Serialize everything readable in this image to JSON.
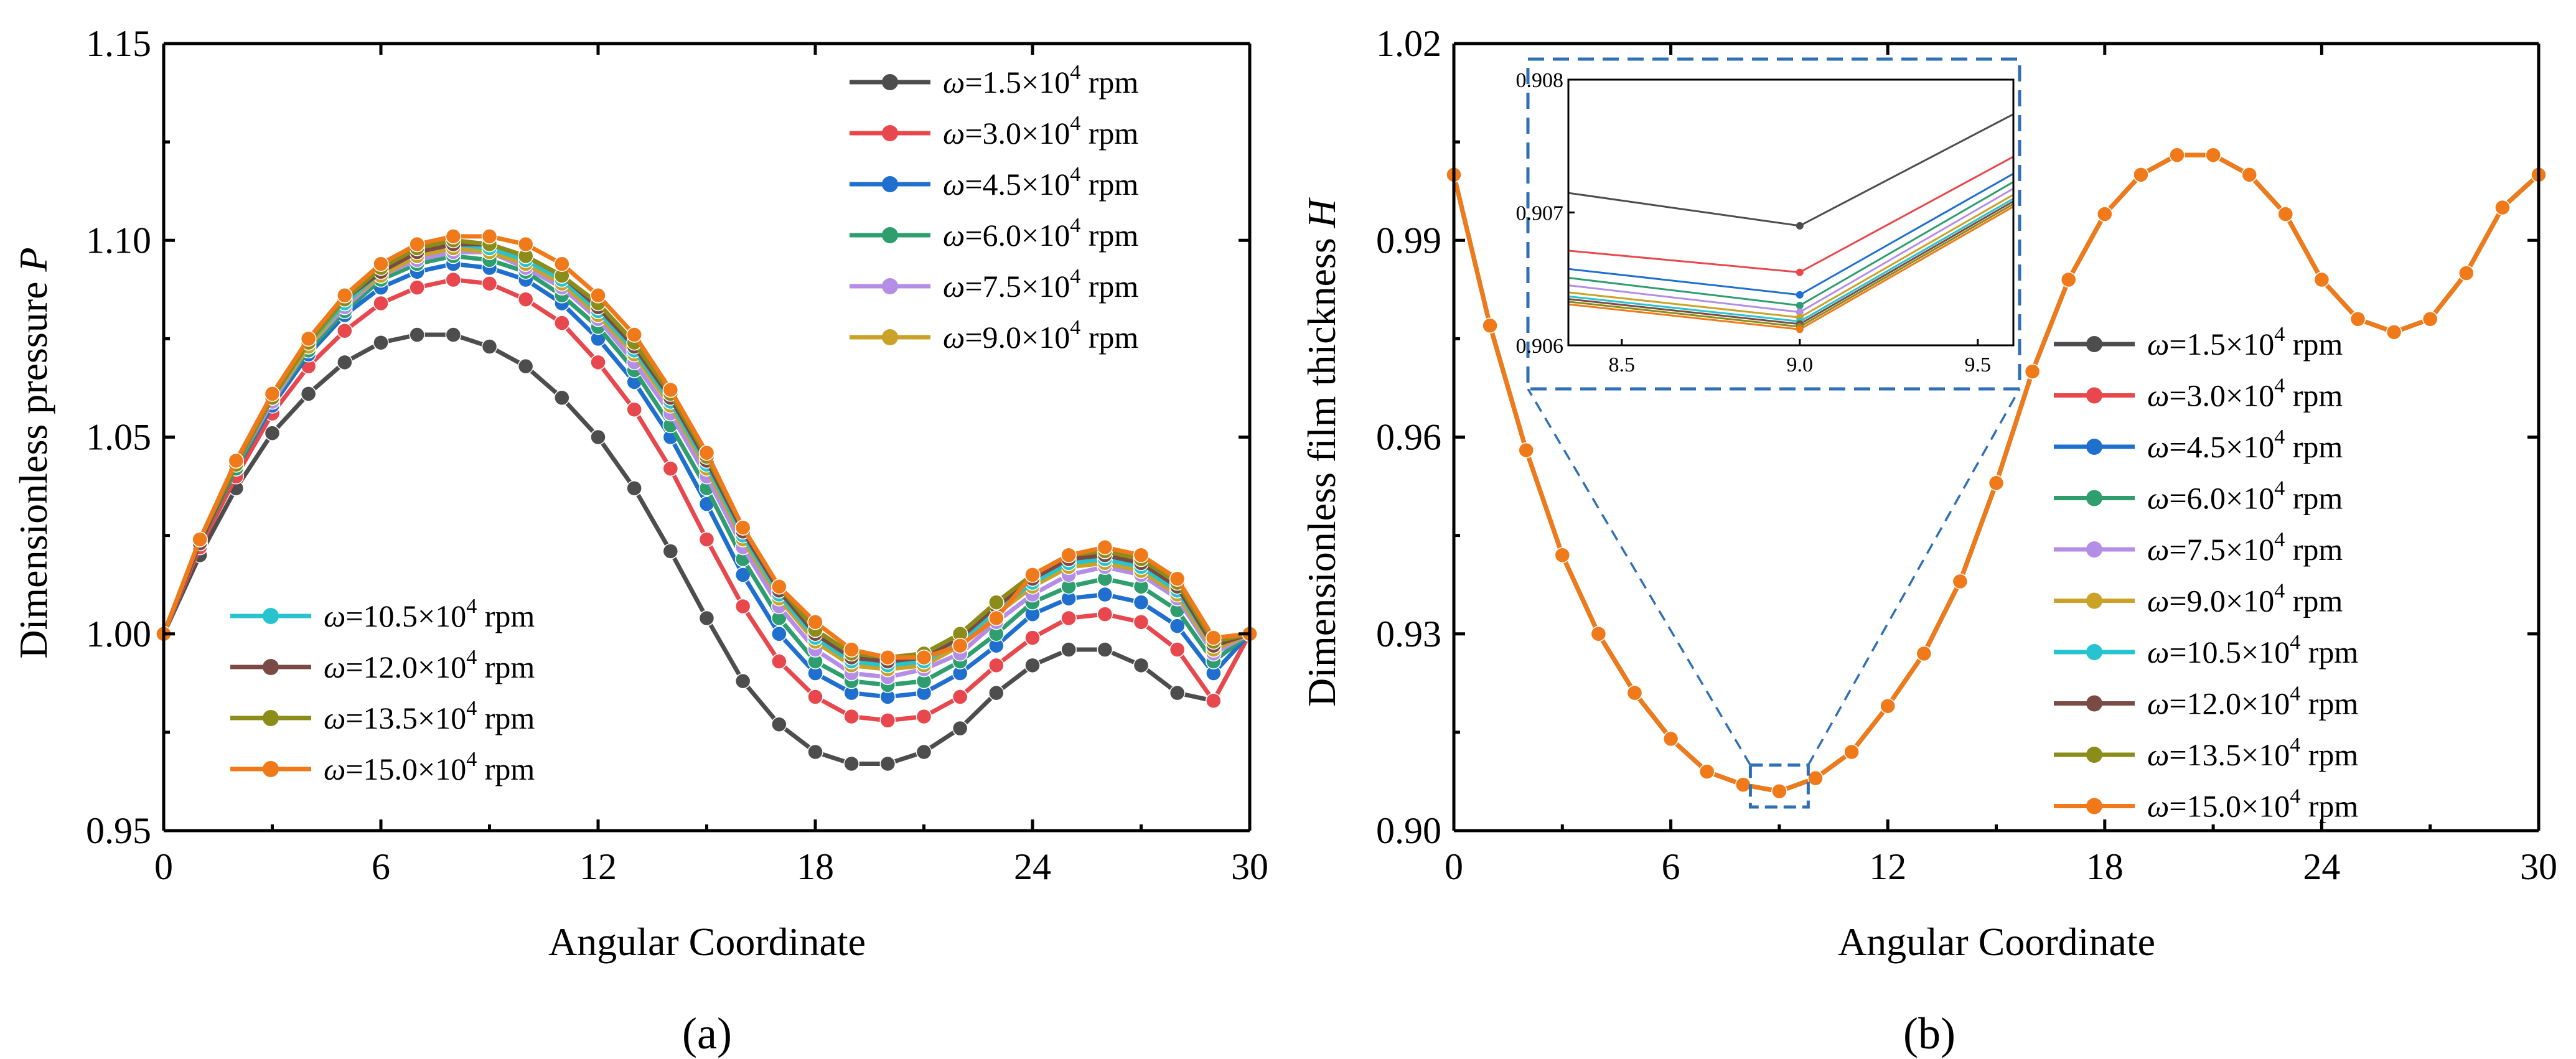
{
  "chart_data": [
    {
      "type": "line",
      "panel_label": "(a)",
      "xlabel": "Angular Coordinate",
      "ylabel_text": "Dimensionless pressure ",
      "ylabel_symbol": "P",
      "xlim": [
        0,
        30
      ],
      "ylim": [
        0.95,
        1.15
      ],
      "xticks": [
        "0",
        "6",
        "12",
        "18",
        "24",
        "30"
      ],
      "yticks": [
        "0.95",
        "1.00",
        "1.05",
        "1.10",
        "1.15"
      ],
      "legend_upper": [
        0,
        1,
        2,
        3,
        4,
        5
      ],
      "legend_lower": [
        6,
        7,
        8,
        9
      ],
      "series": [
        {
          "name": "ω=1.5×10^4 rpm",
          "omega": "ω",
          "coef": "=1.5×10",
          "exp": "4",
          "unit": " rpm",
          "color": "#4d4d4d",
          "values": [
            1.0,
            1.02,
            1.037,
            1.051,
            1.061,
            1.069,
            1.074,
            1.076,
            1.076,
            1.073,
            1.068,
            1.06,
            1.05,
            1.037,
            1.021,
            1.004,
            0.988,
            0.977,
            0.97,
            0.967,
            0.967,
            0.97,
            0.976,
            0.985,
            0.992,
            0.996,
            0.996,
            0.992,
            0.985,
            0.983,
            1.0
          ]
        },
        {
          "name": "ω=3.0×10^4 rpm",
          "omega": "ω",
          "coef": "=3.0×10",
          "exp": "4",
          "unit": " rpm",
          "color": "#e8484d",
          "values": [
            1.0,
            1.022,
            1.04,
            1.056,
            1.068,
            1.077,
            1.084,
            1.088,
            1.09,
            1.089,
            1.085,
            1.079,
            1.069,
            1.057,
            1.042,
            1.024,
            1.007,
            0.993,
            0.984,
            0.979,
            0.978,
            0.979,
            0.984,
            0.992,
            0.999,
            1.004,
            1.005,
            1.003,
            0.996,
            0.983,
            1.0
          ]
        },
        {
          "name": "ω=4.5×10^4 rpm",
          "omega": "ω",
          "coef": "=4.5×10",
          "exp": "4",
          "unit": " rpm",
          "color": "#1f6fce",
          "values": [
            1.0,
            1.023,
            1.042,
            1.058,
            1.071,
            1.081,
            1.088,
            1.092,
            1.094,
            1.093,
            1.09,
            1.084,
            1.075,
            1.064,
            1.05,
            1.033,
            1.015,
            1.0,
            0.99,
            0.985,
            0.984,
            0.985,
            0.99,
            0.997,
            1.005,
            1.009,
            1.01,
            1.008,
            1.002,
            0.99,
            1.0
          ]
        },
        {
          "name": "ω=6.0×10^4 rpm",
          "omega": "ω",
          "coef": "=6.0×10",
          "exp": "4",
          "unit": " rpm",
          "color": "#2e9e6e",
          "values": [
            1.0,
            1.023,
            1.042,
            1.059,
            1.072,
            1.082,
            1.09,
            1.094,
            1.096,
            1.095,
            1.092,
            1.086,
            1.078,
            1.067,
            1.053,
            1.037,
            1.019,
            1.004,
            0.993,
            0.988,
            0.987,
            0.988,
            0.993,
            1.0,
            1.008,
            1.012,
            1.014,
            1.012,
            1.006,
            0.993,
            1.0
          ]
        },
        {
          "name": "ω=7.5×10^4 rpm",
          "omega": "ω",
          "coef": "=7.5×10",
          "exp": "4",
          "unit": " rpm",
          "color": "#b48ee6",
          "values": [
            1.0,
            1.023,
            1.043,
            1.059,
            1.073,
            1.083,
            1.091,
            1.095,
            1.097,
            1.097,
            1.093,
            1.088,
            1.08,
            1.069,
            1.056,
            1.04,
            1.022,
            1.007,
            0.996,
            0.99,
            0.989,
            0.991,
            0.995,
            1.003,
            1.01,
            1.015,
            1.017,
            1.015,
            1.009,
            0.995,
            1.0
          ]
        },
        {
          "name": "ω=9.0×10^4 rpm",
          "omega": "ω",
          "coef": "=9.0×10",
          "exp": "4",
          "unit": " rpm",
          "color": "#c9a227",
          "values": [
            1.0,
            1.023,
            1.043,
            1.06,
            1.073,
            1.084,
            1.091,
            1.096,
            1.098,
            1.097,
            1.094,
            1.089,
            1.081,
            1.071,
            1.058,
            1.042,
            1.024,
            1.009,
            0.998,
            0.992,
            0.991,
            0.992,
            0.997,
            1.005,
            1.012,
            1.017,
            1.018,
            1.016,
            1.01,
            0.996,
            1.0
          ]
        },
        {
          "name": "ω=10.5×10^4 rpm",
          "omega": "ω",
          "coef": "=10.5×10",
          "exp": "4",
          "unit": " rpm",
          "color": "#27c4cf",
          "values": [
            1.0,
            1.023,
            1.043,
            1.06,
            1.074,
            1.084,
            1.092,
            1.097,
            1.099,
            1.098,
            1.095,
            1.09,
            1.082,
            1.072,
            1.059,
            1.043,
            1.025,
            1.01,
            0.999,
            0.993,
            0.992,
            0.993,
            0.998,
            1.006,
            1.013,
            1.018,
            1.019,
            1.017,
            1.011,
            0.997,
            1.0
          ]
        },
        {
          "name": "ω=12.0×10^4 rpm",
          "omega": "ω",
          "coef": "=12.0×10",
          "exp": "4",
          "unit": " rpm",
          "color": "#7a4b45",
          "values": [
            1.0,
            1.023,
            1.043,
            1.06,
            1.074,
            1.085,
            1.092,
            1.097,
            1.099,
            1.099,
            1.096,
            1.091,
            1.083,
            1.073,
            1.06,
            1.044,
            1.026,
            1.011,
            1.0,
            0.994,
            0.993,
            0.994,
            0.999,
            1.007,
            1.014,
            1.019,
            1.02,
            1.018,
            1.012,
            0.997,
            1.0
          ]
        },
        {
          "name": "ω=13.5×10^4 rpm",
          "omega": "ω",
          "coef": "=13.5×10",
          "exp": "4",
          "unit": " rpm",
          "color": "#8c8c1a",
          "values": [
            1.0,
            1.024,
            1.043,
            1.06,
            1.074,
            1.085,
            1.093,
            1.098,
            1.1,
            1.099,
            1.096,
            1.091,
            1.084,
            1.074,
            1.061,
            1.045,
            1.027,
            1.012,
            1.001,
            0.995,
            0.994,
            0.995,
            1.0,
            1.008,
            1.015,
            1.02,
            1.021,
            1.019,
            1.013,
            0.998,
            1.0
          ]
        },
        {
          "name": "ω=15.0×10^4 rpm",
          "omega": "ω",
          "coef": "=15.0×10",
          "exp": "4",
          "unit": " rpm",
          "color": "#f07a1a",
          "values": [
            1.0,
            1.024,
            1.044,
            1.061,
            1.075,
            1.086,
            1.094,
            1.099,
            1.101,
            1.101,
            1.099,
            1.094,
            1.086,
            1.076,
            1.062,
            1.046,
            1.027,
            1.012,
            1.003,
            0.996,
            0.994,
            0.994,
            0.997,
            1.004,
            1.015,
            1.02,
            1.022,
            1.02,
            1.014,
            0.999,
            1.0
          ]
        }
      ]
    },
    {
      "type": "line",
      "panel_label": "(b)",
      "xlabel": "Angular Coordinate",
      "ylabel_text": "Dimensionless film thickness ",
      "ylabel_symbol": "H",
      "xlim": [
        0,
        30
      ],
      "ylim": [
        0.9,
        1.02
      ],
      "xticks": [
        "0",
        "6",
        "12",
        "18",
        "24",
        "30"
      ],
      "yticks": [
        "0.90",
        "0.93",
        "0.96",
        "0.99",
        "1.02"
      ],
      "legend": [
        0,
        1,
        2,
        3,
        4,
        5,
        6,
        7,
        8,
        9
      ],
      "shared_values": [
        1.0,
        0.977,
        0.958,
        0.942,
        0.93,
        0.921,
        0.914,
        0.909,
        0.907,
        0.906,
        0.908,
        0.912,
        0.919,
        0.927,
        0.938,
        0.953,
        0.97,
        0.984,
        0.994,
        1.0,
        1.003,
        1.003,
        1.0,
        0.994,
        0.984,
        0.978,
        0.976,
        0.978,
        0.985,
        0.995,
        1.0
      ],
      "zoom_box_x": [
        8.2,
        9.8
      ],
      "zoom_box_y": [
        0.9036,
        0.91
      ],
      "inset": {
        "xlim": [
          8.35,
          9.6
        ],
        "ylim": [
          0.906,
          0.908
        ],
        "xticks": [
          "8.5",
          "9.0",
          "9.5"
        ],
        "yticks": [
          "0.906",
          "0.907",
          "0.908"
        ],
        "x": [
          8,
          9,
          10
        ],
        "series": [
          {
            "color": "#4d4d4d",
            "values": [
              0.90728,
              0.9069,
              0.9083
            ]
          },
          {
            "color": "#e8484d",
            "values": [
              0.9068,
              0.90655,
              0.908
            ]
          },
          {
            "color": "#1f6fce",
            "values": [
              0.90668,
              0.90638,
              0.9079
            ]
          },
          {
            "color": "#2e9e6e",
            "values": [
              0.90662,
              0.9063,
              0.90785
            ]
          },
          {
            "color": "#b48ee6",
            "values": [
              0.90656,
              0.90625,
              0.9078
            ]
          },
          {
            "color": "#c9a227",
            "values": [
              0.9065,
              0.90621,
              0.90775
            ]
          },
          {
            "color": "#27c4cf",
            "values": [
              0.90647,
              0.90618,
              0.90772
            ]
          },
          {
            "color": "#7a4b45",
            "values": [
              0.90645,
              0.90616,
              0.9077
            ]
          },
          {
            "color": "#8c8c1a",
            "values": [
              0.90643,
              0.90614,
              0.90768
            ]
          },
          {
            "color": "#f07a1a",
            "values": [
              0.90641,
              0.90612,
              0.90766
            ]
          }
        ]
      }
    }
  ]
}
